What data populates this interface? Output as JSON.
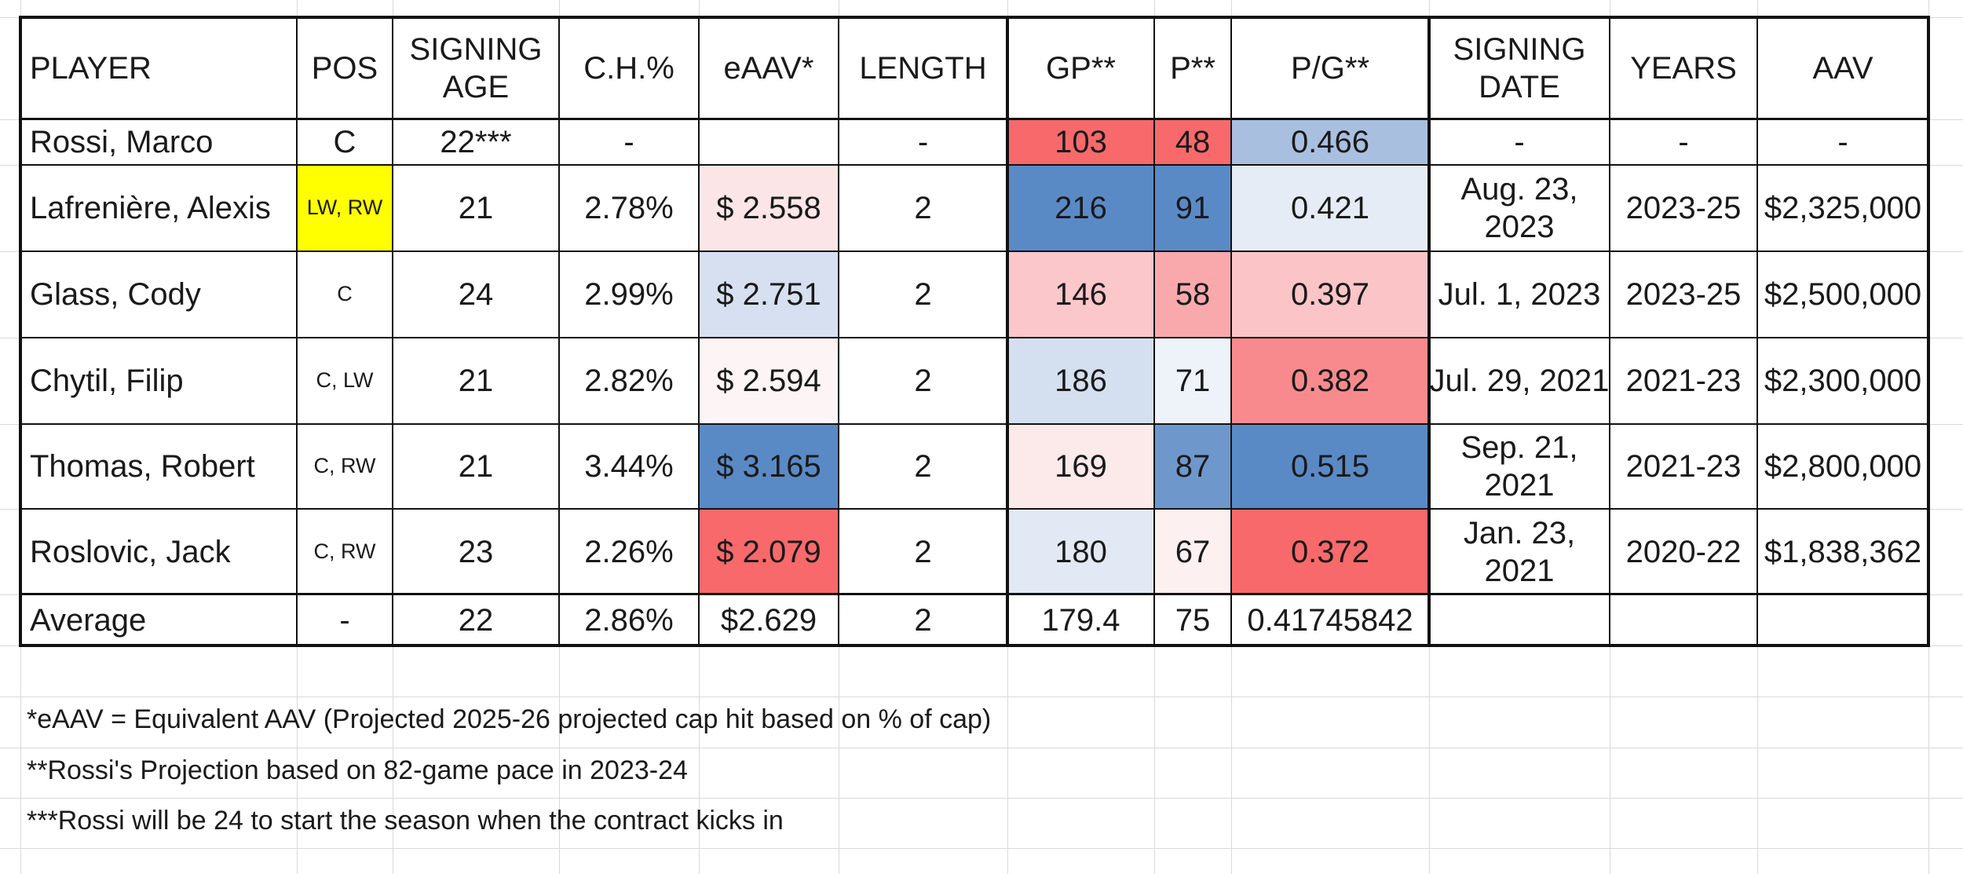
{
  "headers": {
    "player": "PLAYER",
    "pos": "POS",
    "signing_age": "SIGNING AGE",
    "ch_pct": "C.H.%",
    "eaav": "eAAV*",
    "length": "LENGTH",
    "gp": "GP**",
    "p": "P**",
    "pg": "P/G**",
    "signing_date": "SIGNING DATE",
    "years": "YEARS",
    "aav": "AAV"
  },
  "rows": [
    {
      "player": "Rossi, Marco",
      "pos": "C",
      "signing_age": "22***",
      "ch_pct": "-",
      "eaav": "",
      "length": "-",
      "gp": "103",
      "p": "48",
      "pg": "0.466",
      "signing_date": "-",
      "years": "-",
      "aav": "-",
      "colors": {
        "eaav": "#ffffff",
        "gp": "#f8696b",
        "p": "#f8696b",
        "pg": "#a9bfe0"
      }
    },
    {
      "player": "Lafrenière, Alexis",
      "pos": "LW, RW",
      "signing_age": "21",
      "ch_pct": "2.78%",
      "eaav": "$ 2.558",
      "length": "2",
      "gp": "216",
      "p": "91",
      "pg": "0.421",
      "signing_date": "Aug. 23, 2023",
      "years": "2023-25",
      "aav": "$2,325,000",
      "colors": {
        "pos": "#ffff00",
        "eaav": "#fbe5e7",
        "gp": "#5a8ac6",
        "p": "#5a8ac6",
        "pg": "#e6ecf6"
      }
    },
    {
      "player": "Glass, Cody",
      "pos": "C",
      "signing_age": "24",
      "ch_pct": "2.99%",
      "eaav": "$ 2.751",
      "length": "2",
      "gp": "146",
      "p": "58",
      "pg": "0.397",
      "signing_date": "Jul. 1, 2023",
      "years": "2023-25",
      "aav": "$2,500,000",
      "colors": {
        "eaav": "#d6e0f0",
        "gp": "#fbc7ca",
        "p": "#f9a9ac",
        "pg": "#fbc5c8"
      }
    },
    {
      "player": "Chytil, Filip",
      "pos": "C, LW",
      "signing_age": "21",
      "ch_pct": "2.82%",
      "eaav": "$ 2.594",
      "length": "2",
      "gp": "186",
      "p": "71",
      "pg": "0.382",
      "signing_date": "Jul. 29, 2021",
      "years": "2021-23",
      "aav": "$2,300,000",
      "colors": {
        "eaav": "#fcf4f5",
        "gp": "#d4dff0",
        "p": "#eef2f9",
        "pg": "#f88a8d"
      }
    },
    {
      "player": "Thomas, Robert",
      "pos": "C, RW",
      "signing_age": "21",
      "ch_pct": "3.44%",
      "eaav": "$ 3.165",
      "length": "2",
      "gp": "169",
      "p": "87",
      "pg": "0.515",
      "signing_date": "Sep. 21, 2021",
      "years": "2021-23",
      "aav": "$2,800,000",
      "colors": {
        "eaav": "#5a8ac6",
        "gp": "#fce9ea",
        "p": "#6e98cc",
        "pg": "#5a8ac6"
      }
    },
    {
      "player": "Roslovic, Jack",
      "pos": "C, RW",
      "signing_age": "23",
      "ch_pct": "2.26%",
      "eaav": "$ 2.079",
      "length": "2",
      "gp": "180",
      "p": "67",
      "pg": "0.372",
      "signing_date": "Jan. 23, 2021",
      "years": "2020-22",
      "aav": "$1,838,362",
      "colors": {
        "eaav": "#f8696b",
        "gp": "#e2e9f5",
        "p": "#fcf0f1",
        "pg": "#f8696b"
      }
    }
  ],
  "average": {
    "player": "Average",
    "pos": "-",
    "signing_age": "22",
    "ch_pct": "2.86%",
    "eaav": "$2.629",
    "length": "2",
    "gp": "179.4",
    "p": "75",
    "pg": "0.41745842"
  },
  "notes": [
    "*eAAV = Equivalent AAV (Projected 2025-26 projected cap hit based on % of cap)",
    "**Rossi's Projection based on 82-game pace in 2023-24",
    "***Rossi will be 24 to start the season when the contract kicks in"
  ]
}
